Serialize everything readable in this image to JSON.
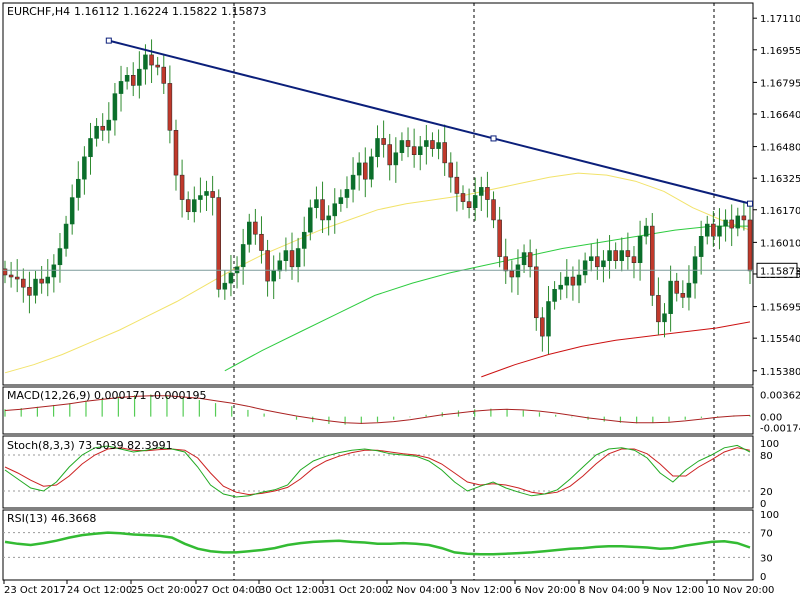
{
  "colors": {
    "background": "#ffffff",
    "bull_candle": "#0b6e2b",
    "bear_candle": "#c0392b",
    "wick": "#2e8b2e",
    "trendline": "#0b1f7a",
    "ma_fast": "#f2e36b",
    "ma_mid": "#2ecc40",
    "ma_slow": "#cc1111",
    "macd_hist": "#55cc55",
    "macd_signal": "#aa2222",
    "stoch_main": "#22aa22",
    "stoch_signal": "#cc2222",
    "rsi": "#33bb33",
    "price_line": "#7d9b9b"
  },
  "chart_data": [
    {
      "type": "candlestick",
      "title": "EURCHF,H4",
      "ohlc_header": "1.16112 1.16224 1.15822 1.15873",
      "current_price_label": "1.15873",
      "current_price": 1.15873,
      "ylim": [
        1.1532,
        1.1716
      ],
      "y_ticks": [
        "1.17110",
        "1.16955",
        "1.16795",
        "1.16640",
        "1.16480",
        "1.16325",
        "1.16170",
        "1.16010",
        "1.15855",
        "1.15695",
        "1.15540",
        "1.15380"
      ],
      "y_tick_values": [
        1.1711,
        1.16955,
        1.16795,
        1.1664,
        1.1648,
        1.16325,
        1.1617,
        1.1601,
        1.15855,
        1.15695,
        1.1554,
        1.1538
      ],
      "x_labels": [
        "23 Oct 2017",
        "24 Oct 12:00",
        "25 Oct 20:00",
        "27 Oct 04:00",
        "30 Oct 12:00",
        "31 Oct 20:00",
        "2 Nov 04:00",
        "3 Nov 12:00",
        "6 Nov 20:00",
        "8 Nov 04:00",
        "9 Nov 12:00",
        "10 Nov 20:00"
      ],
      "closes": [
        1.1585,
        1.1584,
        1.1583,
        1.1579,
        1.1575,
        1.1583,
        1.1581,
        1.1584,
        1.159,
        1.1598,
        1.161,
        1.1623,
        1.1632,
        1.1643,
        1.1652,
        1.1658,
        1.1656,
        1.1661,
        1.1674,
        1.168,
        1.1683,
        1.1678,
        1.1686,
        1.1693,
        1.1688,
        1.1687,
        1.1679,
        1.1656,
        1.1634,
        1.1622,
        1.1616,
        1.1622,
        1.1624,
        1.1626,
        1.1623,
        1.1578,
        1.1581,
        1.1586,
        1.1589,
        1.16,
        1.1611,
        1.1605,
        1.1597,
        1.1582,
        1.1587,
        1.1592,
        1.1597,
        1.1589,
        1.1598,
        1.1606,
        1.1618,
        1.1622,
        1.1612,
        1.1614,
        1.162,
        1.1623,
        1.1627,
        1.1634,
        1.164,
        1.1632,
        1.1643,
        1.1652,
        1.1649,
        1.1639,
        1.1645,
        1.1651,
        1.1648,
        1.1644,
        1.1648,
        1.1651,
        1.1647,
        1.165,
        1.164,
        1.1633,
        1.1625,
        1.1621,
        1.1618,
        1.1624,
        1.1628,
        1.1622,
        1.1612,
        1.1594,
        1.1587,
        1.1584,
        1.159,
        1.1596,
        1.1589,
        1.1564,
        1.1555,
        1.1572,
        1.1578,
        1.158,
        1.1584,
        1.158,
        1.1585,
        1.1592,
        1.1594,
        1.1589,
        1.1592,
        1.1597,
        1.1592,
        1.1597,
        1.1594,
        1.1591,
        1.1604,
        1.1609,
        1.1575,
        1.1562,
        1.1566,
        1.1582,
        1.1576,
        1.1574,
        1.1581,
        1.1594,
        1.1604,
        1.161,
        1.1604,
        1.1609,
        1.1612,
        1.1608,
        1.1614,
        1.1612,
        1.1587
      ],
      "moving_averages": [
        {
          "start_index": 0,
          "values": [
            1.1537,
            1.1541,
            1.1546,
            1.1552,
            1.1558,
            1.1565,
            1.1572,
            1.158,
            1.1588,
            1.1595,
            1.1601,
            1.1607,
            1.1612,
            1.1617,
            1.162,
            1.1622,
            1.1624,
            1.1627,
            1.163,
            1.1633,
            1.1635,
            1.1634,
            1.1631,
            1.1626,
            1.1618,
            1.1612,
            1.1607
          ]
        },
        {
          "start_index": 36,
          "values": [
            1.1538,
            1.1548,
            1.1557,
            1.1566,
            1.1575,
            1.1581,
            1.1586,
            1.159,
            1.1594,
            1.1598,
            1.1601,
            1.1604,
            1.1607,
            1.1609,
            1.1609
          ]
        },
        {
          "start_index": 78,
          "values": [
            1.1535,
            1.1541,
            1.1546,
            1.155,
            1.1553,
            1.1555,
            1.1557,
            1.1559,
            1.1562
          ]
        }
      ],
      "trendline": {
        "start": {
          "index": 17,
          "price": 1.17
        },
        "end": {
          "index": 122,
          "price": 1.162
        }
      }
    },
    {
      "type": "histogram",
      "title": "MACD(12,26,9) 0.000171 -0.000195",
      "y_ticks": [
        "0.00362",
        "0.00",
        "-0.001742"
      ],
      "ylim": [
        -0.0025,
        0.0045
      ],
      "values": [
        0.0012,
        0.0014,
        0.0016,
        0.0019,
        0.0022,
        0.0026,
        0.003,
        0.0033,
        0.0035,
        0.0036,
        0.0034,
        0.0031,
        0.0027,
        0.0022,
        0.0017,
        0.0011,
        0.0005,
        0.0,
        -0.0005,
        -0.0009,
        -0.0012,
        -0.0013,
        -0.0012,
        -0.0009,
        -0.0005,
        -0.0001,
        0.0003,
        0.0007,
        0.001,
        0.0012,
        0.0013,
        0.0012,
        0.001,
        0.0007,
        0.0003,
        -0.0001,
        -0.0005,
        -0.0008,
        -0.001,
        -0.0011,
        -0.001,
        -0.0008,
        -0.0005,
        -0.0002,
        0.0001,
        0.0002,
        0.0002
      ],
      "signal": [
        0.001,
        0.0012,
        0.0015,
        0.0018,
        0.0021,
        0.0025,
        0.0028,
        0.0031,
        0.0033,
        0.0034,
        0.0034,
        0.0032,
        0.003,
        0.0026,
        0.0022,
        0.0017,
        0.0011,
        0.0006,
        0.0001,
        -0.0003,
        -0.0007,
        -0.001,
        -0.0011,
        -0.001,
        -0.0008,
        -0.0005,
        -0.0001,
        0.0003,
        0.0006,
        0.0009,
        0.0011,
        0.0012,
        0.0011,
        0.0009,
        0.0006,
        0.0002,
        -0.0002,
        -0.0005,
        -0.0008,
        -0.001,
        -0.001,
        -0.0009,
        -0.0007,
        -0.0004,
        -0.0001,
        0.0001,
        0.0002
      ]
    },
    {
      "type": "line",
      "title": "Stoch(8,3,3) 73.5039 82.3991",
      "y_ticks": [
        "100",
        "80",
        "20",
        "0"
      ],
      "ylim": [
        0,
        100
      ],
      "levels": [
        80,
        20
      ],
      "series": [
        {
          "values": [
            55,
            40,
            25,
            20,
            35,
            60,
            80,
            92,
            95,
            90,
            85,
            88,
            92,
            90,
            85,
            60,
            30,
            15,
            10,
            12,
            18,
            22,
            30,
            55,
            70,
            78,
            84,
            88,
            90,
            87,
            82,
            80,
            78,
            70,
            55,
            35,
            20,
            28,
            35,
            25,
            18,
            12,
            15,
            22,
            40,
            60,
            80,
            90,
            92,
            88,
            75,
            50,
            35,
            55,
            70,
            80,
            92,
            96,
            85
          ]
        },
        {
          "values": [
            60,
            50,
            38,
            28,
            30,
            45,
            65,
            80,
            90,
            92,
            88,
            87,
            89,
            90,
            88,
            75,
            50,
            28,
            18,
            14,
            16,
            20,
            26,
            40,
            58,
            70,
            78,
            84,
            88,
            88,
            85,
            82,
            80,
            75,
            65,
            50,
            35,
            30,
            32,
            30,
            25,
            18,
            15,
            18,
            28,
            45,
            65,
            82,
            90,
            90,
            82,
            65,
            45,
            45,
            60,
            72,
            85,
            92,
            88
          ]
        }
      ]
    },
    {
      "type": "line",
      "title": "RSI(13) 46.3668",
      "y_ticks": [
        "100",
        "70",
        "30",
        "0"
      ],
      "ylim": [
        0,
        100
      ],
      "levels": [
        70,
        30
      ],
      "series": [
        {
          "values": [
            55,
            52,
            50,
            53,
            57,
            62,
            66,
            68,
            70,
            69,
            67,
            66,
            65,
            62,
            52,
            44,
            40,
            38,
            38,
            40,
            42,
            45,
            50,
            53,
            55,
            56,
            57,
            55,
            54,
            52,
            52,
            53,
            52,
            50,
            45,
            38,
            36,
            35,
            35,
            36,
            37,
            38,
            40,
            42,
            44,
            45,
            47,
            48,
            48,
            47,
            46,
            44,
            45,
            49,
            52,
            55,
            56,
            53,
            46
          ]
        }
      ]
    }
  ]
}
